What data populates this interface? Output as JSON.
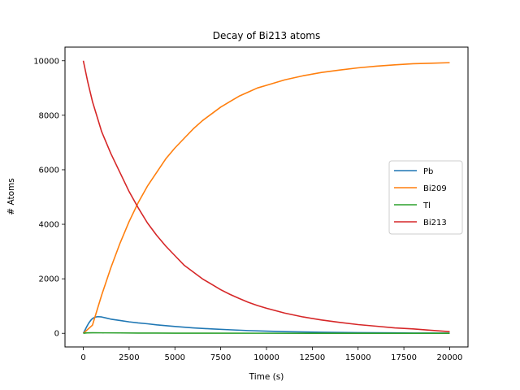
{
  "chart_data": {
    "type": "line",
    "title": "Decay of Bi213 atoms",
    "xlabel": "Time (s)",
    "ylabel": "# Atoms",
    "xlim": [
      -1000,
      21000
    ],
    "ylim": [
      -500,
      10500
    ],
    "xticks": [
      0,
      2500,
      5000,
      7500,
      10000,
      12500,
      15000,
      17500,
      20000
    ],
    "yticks": [
      0,
      2000,
      4000,
      6000,
      8000,
      10000
    ],
    "grid": false,
    "legend_position": "center-right",
    "series": [
      {
        "name": "Pb",
        "color": "#1f77b4",
        "x": [
          0,
          100,
          200,
          300,
          400,
          500,
          600,
          700,
          800,
          1000,
          1250,
          1500,
          2000,
          2500,
          3000,
          3500,
          4000,
          5000,
          6000,
          7000,
          8000,
          9000,
          10000,
          11000,
          12000,
          13000,
          14000,
          15000,
          16000,
          17000,
          18000,
          19000,
          20000
        ],
        "y": [
          0,
          130,
          260,
          380,
          470,
          540,
          580,
          600,
          610,
          600,
          560,
          520,
          470,
          420,
          380,
          350,
          310,
          250,
          200,
          160,
          130,
          100,
          80,
          60,
          50,
          40,
          30,
          25,
          20,
          15,
          10,
          8,
          5
        ]
      },
      {
        "name": "Bi209",
        "color": "#ff7f0e",
        "x": [
          0,
          500,
          1000,
          1500,
          2000,
          2500,
          3000,
          3500,
          4000,
          4500,
          5000,
          5500,
          6000,
          6500,
          7000,
          7500,
          8000,
          8500,
          9000,
          9500,
          10000,
          11000,
          12000,
          13000,
          14000,
          15000,
          16000,
          17000,
          18000,
          19000,
          20000
        ],
        "y": [
          0,
          300,
          1400,
          2400,
          3300,
          4100,
          4800,
          5400,
          5900,
          6400,
          6800,
          7150,
          7500,
          7800,
          8050,
          8300,
          8500,
          8700,
          8850,
          9000,
          9100,
          9300,
          9450,
          9570,
          9660,
          9740,
          9800,
          9850,
          9890,
          9910,
          9930
        ]
      },
      {
        "name": "Tl",
        "color": "#2ca02c",
        "x": [
          0,
          200,
          500,
          1000,
          2000,
          3000,
          4000,
          5000,
          10000,
          15000,
          20000
        ],
        "y": [
          0,
          15,
          20,
          18,
          14,
          10,
          8,
          6,
          3,
          1,
          0
        ]
      },
      {
        "name": "Bi213",
        "color": "#d62728",
        "x": [
          0,
          250,
          500,
          750,
          1000,
          1500,
          2000,
          2500,
          3000,
          3500,
          4000,
          4500,
          5000,
          5500,
          6000,
          6500,
          7000,
          7500,
          8000,
          8500,
          9000,
          9500,
          10000,
          11000,
          12000,
          13000,
          14000,
          15000,
          16000,
          17000,
          18000,
          19000,
          20000
        ],
        "y": [
          10000,
          9200,
          8500,
          7950,
          7400,
          6600,
          5900,
          5200,
          4600,
          4050,
          3600,
          3200,
          2850,
          2500,
          2250,
          2000,
          1800,
          1600,
          1430,
          1280,
          1140,
          1020,
          920,
          740,
          600,
          490,
          400,
          320,
          260,
          200,
          160,
          110,
          60
        ]
      }
    ]
  }
}
